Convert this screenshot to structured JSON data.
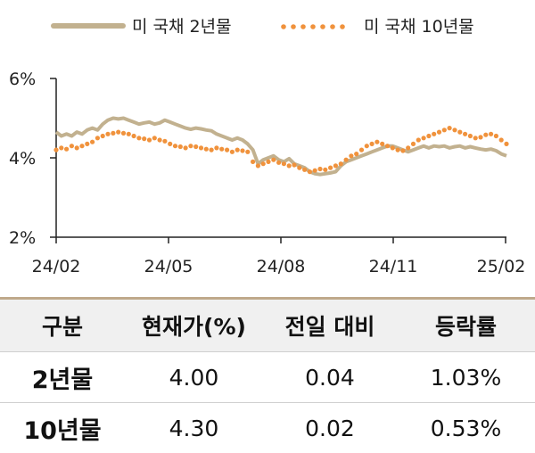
{
  "chart_data": {
    "type": "line",
    "legend": {
      "position": "top"
    },
    "x_ticks": [
      "24/02",
      "24/05",
      "24/08",
      "24/11",
      "25/02"
    ],
    "y_ticks": [
      "6%",
      "4%",
      "2%"
    ],
    "ylim": [
      2,
      6
    ],
    "series": [
      {
        "name": "미 국채 2년물",
        "style": "solid",
        "color": "#c2b18f",
        "values": [
          4.65,
          4.55,
          4.6,
          4.55,
          4.65,
          4.6,
          4.7,
          4.75,
          4.7,
          4.85,
          4.95,
          5.0,
          4.98,
          5.0,
          4.95,
          4.9,
          4.85,
          4.88,
          4.9,
          4.85,
          4.88,
          4.95,
          4.9,
          4.85,
          4.8,
          4.75,
          4.72,
          4.75,
          4.73,
          4.7,
          4.68,
          4.6,
          4.55,
          4.5,
          4.45,
          4.5,
          4.45,
          4.35,
          4.2,
          3.85,
          3.95,
          4.0,
          4.05,
          3.95,
          3.9,
          3.98,
          3.85,
          3.8,
          3.75,
          3.65,
          3.6,
          3.58,
          3.6,
          3.62,
          3.65,
          3.8,
          3.9,
          3.95,
          4.0,
          4.05,
          4.1,
          4.15,
          4.2,
          4.25,
          4.3,
          4.3,
          4.25,
          4.2,
          4.15,
          4.2,
          4.25,
          4.3,
          4.25,
          4.3,
          4.28,
          4.3,
          4.25,
          4.28,
          4.3,
          4.25,
          4.28,
          4.25,
          4.22,
          4.2,
          4.22,
          4.18,
          4.1,
          4.05
        ]
      },
      {
        "name": "미 국채 10년물",
        "style": "dotted",
        "color": "#f0923c",
        "values": [
          4.2,
          4.25,
          4.22,
          4.3,
          4.25,
          4.3,
          4.35,
          4.4,
          4.5,
          4.55,
          4.6,
          4.62,
          4.65,
          4.62,
          4.6,
          4.55,
          4.5,
          4.48,
          4.45,
          4.5,
          4.45,
          4.42,
          4.35,
          4.3,
          4.28,
          4.25,
          4.3,
          4.28,
          4.25,
          4.22,
          4.2,
          4.25,
          4.22,
          4.2,
          4.15,
          4.2,
          4.18,
          4.15,
          3.9,
          3.8,
          3.85,
          3.9,
          3.95,
          3.88,
          3.85,
          3.8,
          3.82,
          3.75,
          3.7,
          3.65,
          3.68,
          3.72,
          3.7,
          3.75,
          3.8,
          3.85,
          3.95,
          4.05,
          4.1,
          4.2,
          4.3,
          4.35,
          4.4,
          4.35,
          4.3,
          4.25,
          4.2,
          4.18,
          4.25,
          4.35,
          4.45,
          4.5,
          4.55,
          4.6,
          4.65,
          4.7,
          4.75,
          4.7,
          4.65,
          4.6,
          4.55,
          4.5,
          4.52,
          4.58,
          4.6,
          4.55,
          4.45,
          4.35
        ]
      }
    ]
  },
  "table": {
    "headers": [
      "구분",
      "현재가(%)",
      "전일 대비",
      "등락률"
    ],
    "rows": [
      {
        "label": "2년물",
        "price": "4.00",
        "change": "0.04",
        "rate": "1.03%"
      },
      {
        "label": "10년물",
        "price": "4.30",
        "change": "0.02",
        "rate": "0.53%"
      }
    ]
  }
}
